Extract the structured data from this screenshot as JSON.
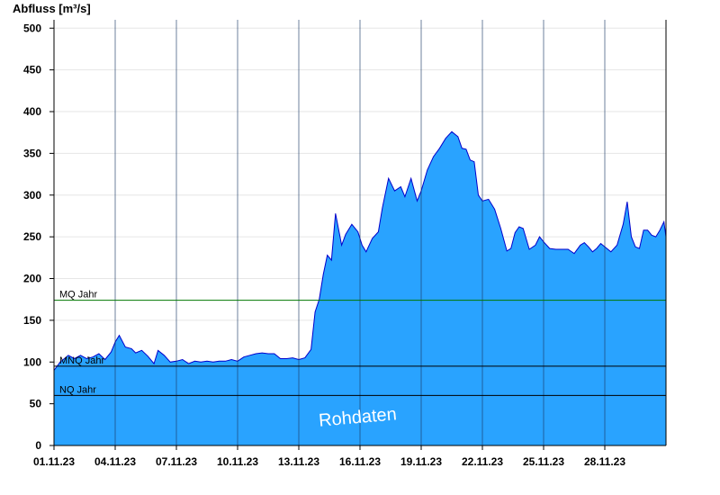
{
  "chart_data": {
    "type": "area",
    "title": "",
    "ylabel": "Abfluss [m³/s]",
    "xlabel": "",
    "ylim": [
      0,
      510
    ],
    "y_ticks": [
      0,
      50,
      100,
      150,
      200,
      250,
      300,
      350,
      400,
      450,
      500
    ],
    "y_tick_labels": [
      "0",
      "50",
      "100",
      "150",
      "200",
      "250",
      "300",
      "350",
      "400",
      "450",
      "500"
    ],
    "x_range_days": [
      1,
      31
    ],
    "x_ticks": [
      1,
      4,
      7,
      10,
      13,
      16,
      19,
      22,
      25,
      28
    ],
    "x_tick_labels": [
      "01.11.23",
      "04.11.23",
      "07.11.23",
      "10.11.23",
      "13.11.23",
      "16.11.23",
      "19.11.23",
      "22.11.23",
      "25.11.23",
      "28.11.23"
    ],
    "grid": "vertical lines at date ticks",
    "colors": {
      "area_fill": "#29a3ff",
      "area_line": "#0000cc",
      "mq_line": "#007700",
      "ref_line": "#000000",
      "watermark": "#ffffff"
    },
    "reference_lines": [
      {
        "name": "MQ Jahr",
        "value": 174
      },
      {
        "name": "MNQ Jahr",
        "value": 95
      },
      {
        "name": "NQ Jahr",
        "value": 60
      }
    ],
    "watermark": "Rohdaten",
    "series": [
      {
        "x": [
          1.0,
          1.3,
          1.7,
          2.0,
          2.3,
          2.6,
          2.9,
          3.2,
          3.5,
          3.8,
          4.0,
          4.2,
          4.5,
          4.8,
          5.0,
          5.3,
          5.6,
          5.9,
          6.1,
          6.4,
          6.7,
          7.0,
          7.3,
          7.6,
          7.9,
          8.2,
          8.5,
          8.8,
          9.1,
          9.4,
          9.7,
          10.0,
          10.3,
          10.6,
          10.9,
          11.2,
          11.5,
          11.8,
          12.1,
          12.4,
          12.7,
          13.0,
          13.3,
          13.6,
          13.8,
          14.0,
          14.2,
          14.4,
          14.6,
          14.8,
          15.0,
          15.1,
          15.3,
          15.6,
          15.9,
          16.1,
          16.3,
          16.6,
          16.9,
          17.1,
          17.4,
          17.7,
          18.0,
          18.2,
          18.5,
          18.8,
          19.0,
          19.3,
          19.6,
          19.9,
          20.2,
          20.5,
          20.8,
          21.0,
          21.2,
          21.4,
          21.6,
          21.8,
          22.0,
          22.3,
          22.6,
          22.9,
          23.2,
          23.4,
          23.6,
          23.8,
          24.0,
          24.3,
          24.6,
          24.8,
          25.0,
          25.3,
          25.6,
          25.9,
          26.2,
          26.5,
          26.8,
          27.0,
          27.2,
          27.4,
          27.6,
          27.8,
          28.0,
          28.3,
          28.6,
          28.9,
          29.1,
          29.3,
          29.5,
          29.7,
          29.9,
          30.1,
          30.3,
          30.5,
          30.7,
          30.9,
          31.0
        ],
        "y": [
          90,
          100,
          108,
          104,
          108,
          104,
          106,
          110,
          103,
          112,
          124,
          132,
          118,
          116,
          111,
          114,
          107,
          98,
          114,
          108,
          100,
          101,
          103,
          98,
          101,
          100,
          101,
          100,
          101,
          101,
          103,
          101,
          106,
          108,
          110,
          111,
          110,
          110,
          104,
          104,
          105,
          103,
          105,
          115,
          160,
          175,
          205,
          228,
          222,
          278,
          253,
          240,
          253,
          265,
          256,
          240,
          232,
          248,
          256,
          285,
          320,
          305,
          310,
          298,
          320,
          293,
          305,
          330,
          346,
          356,
          368,
          376,
          370,
          356,
          355,
          342,
          340,
          300,
          293,
          295,
          283,
          260,
          233,
          236,
          255,
          262,
          260,
          235,
          240,
          250,
          244,
          236,
          235,
          235,
          235,
          230,
          240,
          243,
          238,
          232,
          236,
          242,
          238,
          232,
          240,
          265,
          292,
          250,
          238,
          236,
          258,
          258,
          252,
          250,
          258,
          268,
          250
        ]
      }
    ]
  }
}
